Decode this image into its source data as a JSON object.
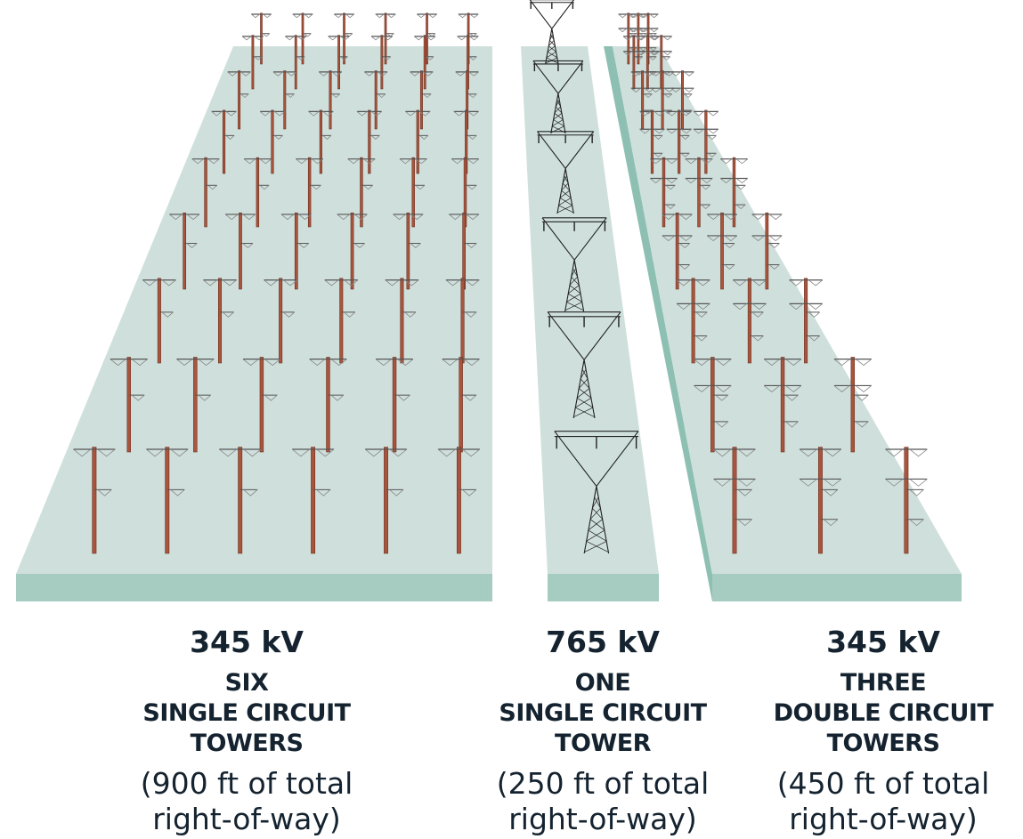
{
  "columns": [
    {
      "voltage": "345 kV",
      "description": [
        "SIX",
        "SINGLE CIRCUIT",
        "TOWERS"
      ],
      "note": [
        "(900 ft of total",
        "right-of-way)"
      ]
    },
    {
      "voltage": "765 kV",
      "description": [
        "ONE",
        "SINGLE CIRCUIT",
        "TOWER"
      ],
      "note": [
        "(250 ft of total",
        "right-of-way)"
      ]
    },
    {
      "voltage": "345 kV",
      "description": [
        "THREE",
        "DOUBLE CIRCUIT",
        "TOWERS"
      ],
      "note": [
        "(450 ft of total",
        "right-of-way)"
      ]
    }
  ]
}
